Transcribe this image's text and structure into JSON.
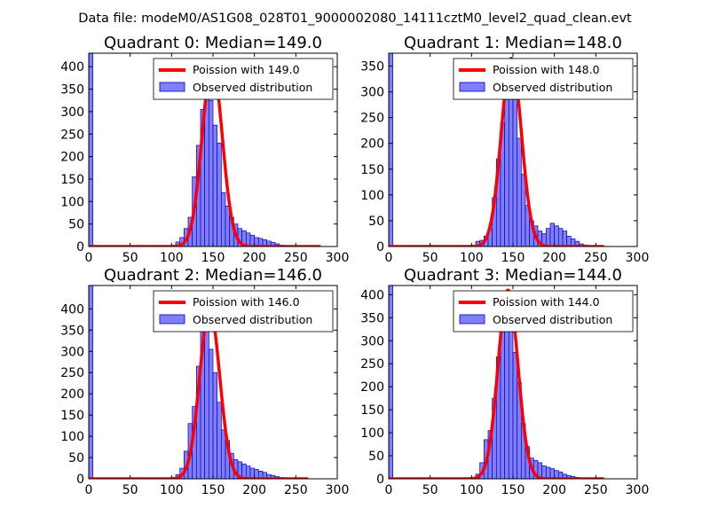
{
  "figure": {
    "suptitle": "Data file: modeM0/AS1G08_028T01_9000002080_14111cztM0_level2_quad_clean.evt"
  },
  "colors": {
    "poisson": "#ff0000",
    "hist_fill": "#7f7fff",
    "hist_edge": "#0000bf",
    "axes": "#000000"
  },
  "chart_data": [
    {
      "type": "bar",
      "title": "Quadrant 0: Median=149.0",
      "xlim": [
        0,
        300
      ],
      "ylim": [
        0,
        430
      ],
      "xticks": [
        0,
        50,
        100,
        150,
        200,
        250,
        300
      ],
      "yticks": [
        0,
        50,
        100,
        150,
        200,
        250,
        300,
        350,
        400
      ],
      "legend": {
        "placement": "top-right",
        "entries": [
          "Poission with 149.0",
          "Observed distribution"
        ]
      },
      "poisson": {
        "label": "Poission with 149.0",
        "mean": 149.0,
        "peak": 405,
        "x_end": 280
      },
      "histogram": {
        "label": "Observed distribution",
        "bin_width": 5,
        "bin_starts": [
          0,
          105,
          110,
          115,
          120,
          125,
          130,
          135,
          140,
          145,
          150,
          155,
          160,
          165,
          170,
          175,
          180,
          185,
          190,
          195,
          200,
          205,
          210,
          215,
          220,
          225,
          230,
          235,
          240,
          245
        ],
        "counts": [
          430,
          10,
          20,
          40,
          65,
          155,
          225,
          305,
          360,
          325,
          270,
          230,
          120,
          90,
          65,
          50,
          40,
          35,
          30,
          25,
          20,
          18,
          15,
          12,
          9,
          6,
          3,
          2,
          1,
          1
        ]
      }
    },
    {
      "type": "bar",
      "title": "Quadrant 1: Median=148.0",
      "xlim": [
        0,
        300
      ],
      "ylim": [
        0,
        375
      ],
      "xticks": [
        0,
        50,
        100,
        150,
        200,
        250,
        300
      ],
      "yticks": [
        0,
        50,
        100,
        150,
        200,
        250,
        300,
        350
      ],
      "legend": {
        "placement": "top-right",
        "entries": [
          "Poission with 148.0",
          "Observed distribution"
        ]
      },
      "poisson": {
        "label": "Poission with 148.0",
        "mean": 148.0,
        "peak": 365,
        "x_end": 260
      },
      "histogram": {
        "label": "Observed distribution",
        "bin_width": 5,
        "bin_starts": [
          0,
          105,
          110,
          115,
          120,
          125,
          130,
          135,
          140,
          145,
          150,
          155,
          160,
          165,
          170,
          175,
          180,
          185,
          190,
          195,
          200,
          205,
          210,
          215,
          220,
          225,
          230,
          235,
          240,
          245
        ],
        "counts": [
          375,
          10,
          12,
          20,
          35,
          95,
          170,
          240,
          300,
          330,
          295,
          210,
          140,
          80,
          50,
          40,
          30,
          25,
          35,
          45,
          40,
          35,
          30,
          20,
          15,
          10,
          5,
          3,
          1,
          1
        ]
      }
    },
    {
      "type": "bar",
      "title": "Quadrant 2: Median=146.0",
      "xlim": [
        0,
        300
      ],
      "ylim": [
        0,
        455
      ],
      "xticks": [
        0,
        50,
        100,
        150,
        200,
        250,
        300
      ],
      "yticks": [
        0,
        50,
        100,
        150,
        200,
        250,
        300,
        350,
        400
      ],
      "legend": {
        "placement": "top-right",
        "entries": [
          "Poission with 146.0",
          "Observed distribution"
        ]
      },
      "poisson": {
        "label": "Poission with 146.0",
        "mean": 146.0,
        "peak": 400,
        "x_end": 265
      },
      "histogram": {
        "label": "Observed distribution",
        "bin_width": 5,
        "bin_starts": [
          0,
          100,
          105,
          110,
          115,
          120,
          125,
          130,
          135,
          140,
          145,
          150,
          155,
          160,
          165,
          170,
          175,
          180,
          185,
          190,
          195,
          200,
          205,
          210,
          215,
          220,
          225,
          230,
          235,
          240,
          245
        ],
        "counts": [
          455,
          3,
          10,
          25,
          65,
          130,
          170,
          265,
          360,
          350,
          305,
          250,
          180,
          115,
          90,
          60,
          45,
          40,
          35,
          30,
          25,
          22,
          18,
          15,
          10,
          8,
          5,
          3,
          2,
          1,
          1
        ]
      }
    },
    {
      "type": "bar",
      "title": "Quadrant 3: Median=144.0",
      "xlim": [
        0,
        300
      ],
      "ylim": [
        0,
        420
      ],
      "xticks": [
        0,
        50,
        100,
        150,
        200,
        250,
        300
      ],
      "yticks": [
        0,
        50,
        100,
        150,
        200,
        250,
        300,
        350,
        400
      ],
      "legend": {
        "placement": "top-right",
        "entries": [
          "Poission with 144.0",
          "Observed distribution"
        ]
      },
      "poisson": {
        "label": "Poission with 144.0",
        "mean": 144.0,
        "peak": 410,
        "x_end": 260
      },
      "histogram": {
        "label": "Observed distribution",
        "bin_width": 5,
        "bin_starts": [
          0,
          100,
          105,
          110,
          115,
          120,
          125,
          130,
          135,
          140,
          145,
          150,
          155,
          160,
          165,
          170,
          175,
          180,
          185,
          190,
          195,
          200,
          205,
          210,
          215,
          220,
          225,
          230,
          235,
          240
        ],
        "counts": [
          420,
          3,
          10,
          35,
          85,
          105,
          175,
          265,
          340,
          360,
          380,
          275,
          210,
          120,
          70,
          45,
          40,
          35,
          28,
          25,
          22,
          18,
          15,
          10,
          7,
          5,
          3,
          2,
          1,
          1
        ]
      }
    }
  ]
}
